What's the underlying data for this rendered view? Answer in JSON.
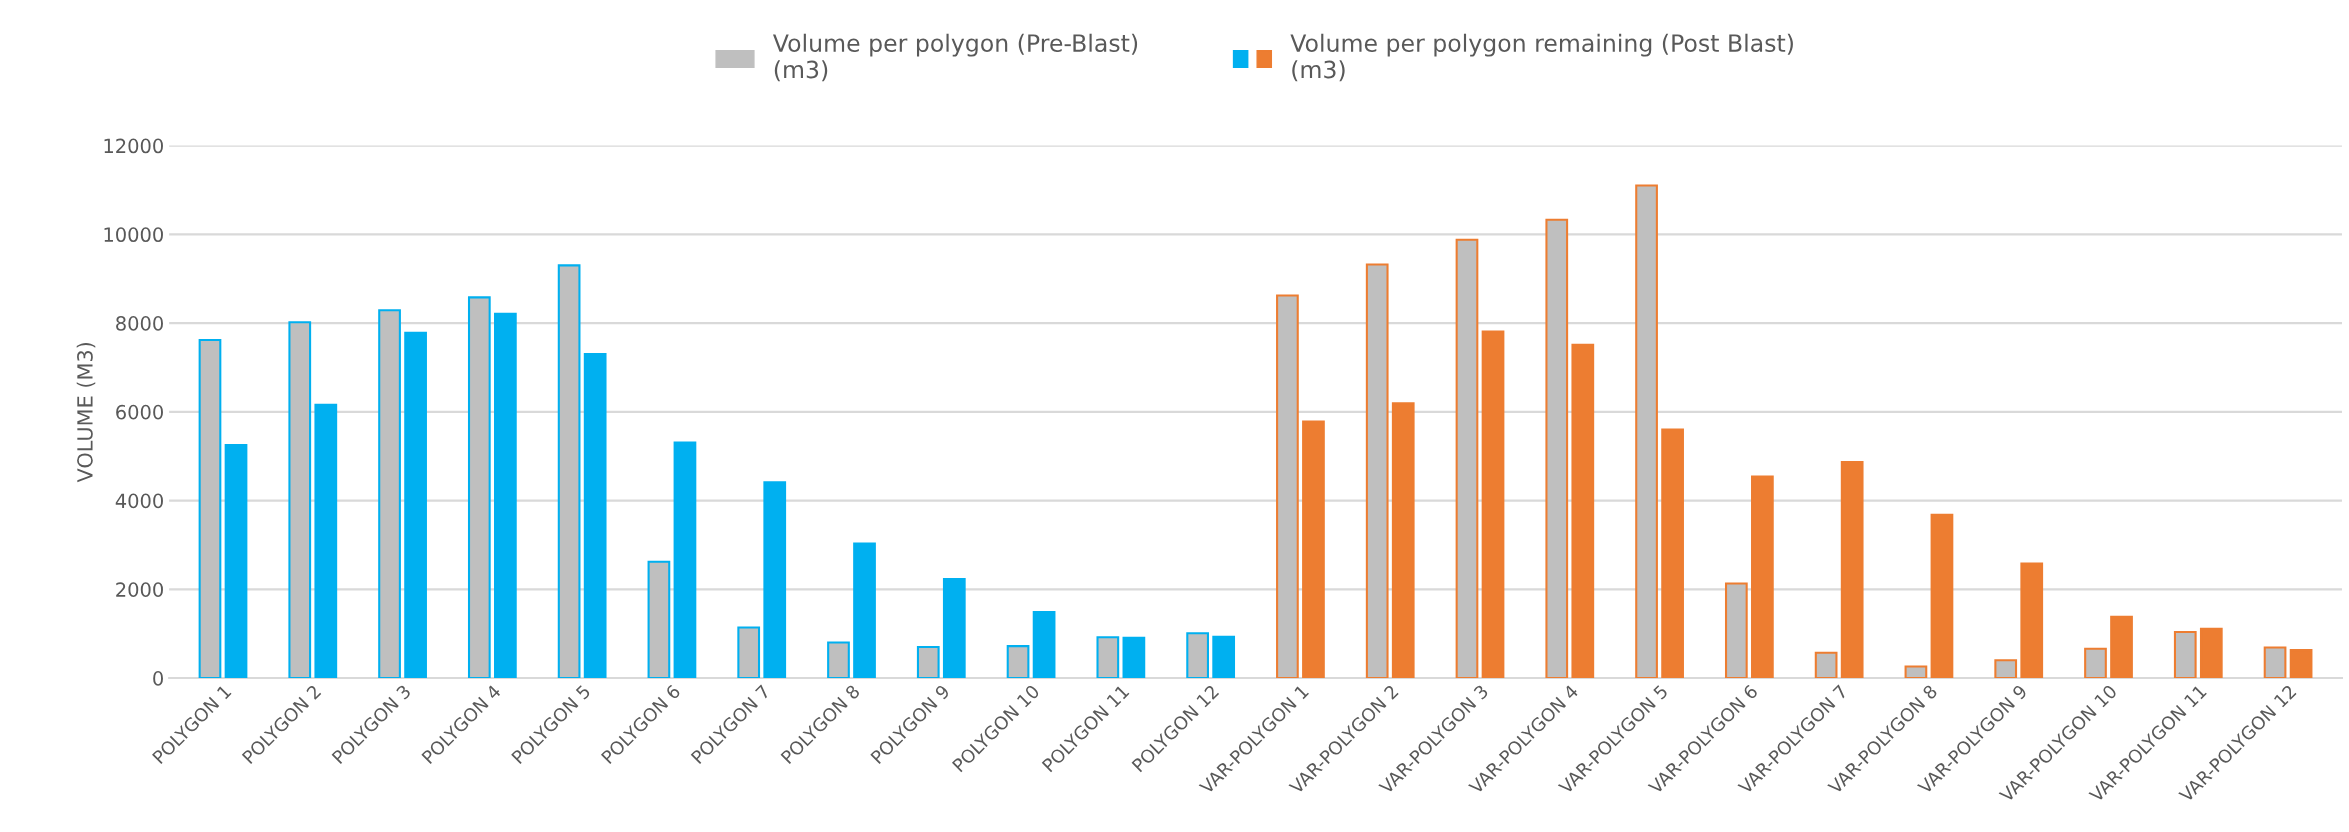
{
  "chart_data": {
    "type": "bar",
    "ylabel": "VOLUME (M3)",
    "categories": [
      "POLYGON 1",
      "POLYGON 2",
      "POLYGON 3",
      "POLYGON 4",
      "POLYGON 5",
      "POLYGON 6",
      "POLYGON 7",
      "POLYGON 8",
      "POLYGON 9",
      "POLYGON 10",
      "POLYGON 11",
      "POLYGON 12",
      "VAR-POLYGON 1",
      "VAR-POLYGON 2",
      "VAR-POLYGON 3",
      "VAR-POLYGON 4",
      "VAR-POLYGON 5",
      "VAR-POLYGON 6",
      "VAR-POLYGON 7",
      "VAR-POLYGON 8",
      "VAR-POLYGON 9",
      "VAR-POLYGON 10",
      "VAR-POLYGON 11",
      "VAR-POLYGON 12"
    ],
    "series": [
      {
        "name": "Volume per polygon (Pre-Blast)\n(m3)",
        "color": "#bfbfbf",
        "values": [
          7620,
          8020,
          8290,
          8580,
          9300,
          2620,
          1140,
          800,
          700,
          720,
          920,
          1010,
          8620,
          9320,
          9880,
          10330,
          11100,
          2130,
          570,
          260,
          400,
          660,
          1040,
          690
        ]
      },
      {
        "name": "Volume per polygon remaining (Post Blast)\n(m3)",
        "colors": [
          "#00b0f0",
          "#00b0f0",
          "#00b0f0",
          "#00b0f0",
          "#00b0f0",
          "#00b0f0",
          "#00b0f0",
          "#00b0f0",
          "#00b0f0",
          "#00b0f0",
          "#00b0f0",
          "#00b0f0",
          "#ed7d31",
          "#ed7d31",
          "#ed7d31",
          "#ed7d31",
          "#ed7d31",
          "#ed7d31",
          "#ed7d31",
          "#ed7d31",
          "#ed7d31",
          "#ed7d31",
          "#ed7d31",
          "#ed7d31"
        ],
        "values": [
          5250,
          6160,
          7780,
          8210,
          7300,
          5310,
          4410,
          3030,
          2230,
          1490,
          910,
          930,
          5780,
          6190,
          7810,
          7510,
          5600,
          4540,
          4870,
          3680,
          2580,
          1380,
          1110,
          630
        ]
      }
    ],
    "ylim": [
      0,
      12000
    ],
    "yticks": [
      0,
      2000,
      4000,
      6000,
      8000,
      10000,
      12000
    ],
    "grid": "y",
    "legend": "top"
  }
}
